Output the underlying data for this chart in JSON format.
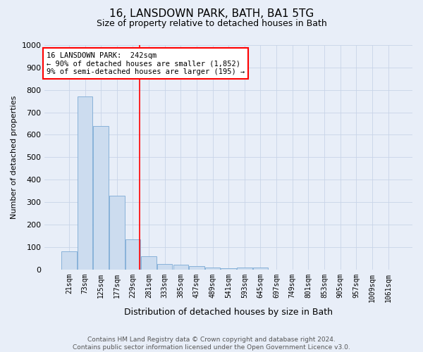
{
  "title": "16, LANSDOWN PARK, BATH, BA1 5TG",
  "subtitle": "Size of property relative to detached houses in Bath",
  "xlabel": "Distribution of detached houses by size in Bath",
  "ylabel": "Number of detached properties",
  "footer_line1": "Contains HM Land Registry data © Crown copyright and database right 2024.",
  "footer_line2": "Contains public sector information licensed under the Open Government Licence v3.0.",
  "categories": [
    "21sqm",
    "73sqm",
    "125sqm",
    "177sqm",
    "229sqm",
    "281sqm",
    "333sqm",
    "385sqm",
    "437sqm",
    "489sqm",
    "541sqm",
    "593sqm",
    "645sqm",
    "697sqm",
    "749sqm",
    "801sqm",
    "853sqm",
    "905sqm",
    "957sqm",
    "1009sqm",
    "1061sqm"
  ],
  "values": [
    80,
    770,
    640,
    330,
    135,
    60,
    25,
    20,
    14,
    8,
    5,
    8,
    8,
    0,
    0,
    0,
    0,
    0,
    0,
    0,
    0
  ],
  "bar_color": "#ccdcef",
  "bar_edge_color": "#7baad4",
  "ylim": [
    0,
    1000
  ],
  "red_line_x": 4.42,
  "annotation_text": "16 LANSDOWN PARK:  242sqm\n← 90% of detached houses are smaller (1,852)\n9% of semi-detached houses are larger (195) →",
  "annotation_box_color": "white",
  "annotation_box_edge_color": "red",
  "red_line_color": "red",
  "grid_color": "#c8d4e8",
  "background_color": "#e8eef8",
  "title_fontsize": 11,
  "subtitle_fontsize": 9,
  "ylabel_fontsize": 8,
  "xlabel_fontsize": 9,
  "tick_fontsize": 7,
  "annot_fontsize": 7.5,
  "footer_fontsize": 6.5
}
